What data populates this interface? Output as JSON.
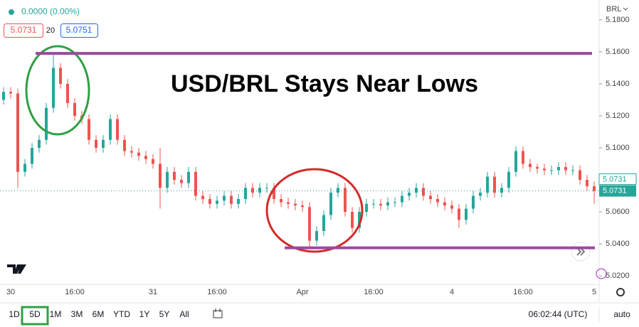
{
  "header": {
    "change": "0.0000 (0.00%)",
    "bid": 5.0731,
    "spread": 20,
    "ask": 5.0751
  },
  "chart_data": {
    "type": "candlestick",
    "title": "USD/BRL Stays Near Lows",
    "currency": "BRL",
    "categories": [
      null,
      "30",
      null,
      null,
      null,
      null,
      null,
      null,
      null,
      null,
      "16:00",
      null,
      null,
      null,
      null,
      null,
      null,
      null,
      null,
      null,
      null,
      "31",
      null,
      null,
      null,
      null,
      null,
      null,
      null,
      null,
      "16:00",
      null,
      null,
      null,
      null,
      null,
      null,
      null,
      null,
      null,
      null,
      null,
      "Apr",
      null,
      null,
      null,
      null,
      null,
      null,
      null,
      null,
      null,
      "16:00",
      null,
      null,
      null,
      null,
      null,
      null,
      null,
      null,
      null,
      null,
      "4",
      null,
      null,
      null,
      null,
      null,
      null,
      null,
      null,
      null,
      "16:00",
      null,
      null,
      null,
      null,
      null,
      null,
      null,
      null,
      null,
      "5"
    ],
    "open": [
      5.13,
      5.135,
      5.134,
      5.085,
      5.09,
      5.1,
      5.105,
      5.125,
      5.15,
      5.14,
      5.128,
      5.12,
      5.118,
      5.105,
      5.1,
      5.105,
      5.118,
      5.105,
      5.098,
      5.097,
      5.095,
      5.093,
      5.09,
      5.075,
      5.085,
      5.08,
      5.078,
      5.085,
      5.07,
      5.068,
      5.065,
      5.067,
      5.07,
      5.065,
      5.068,
      5.075,
      5.072,
      5.075,
      5.075,
      5.068,
      5.066,
      5.065,
      5.064,
      5.063,
      5.042,
      5.048,
      5.058,
      5.072,
      5.075,
      5.06,
      5.05,
      5.06,
      5.065,
      5.065,
      5.064,
      5.066,
      5.066,
      5.07,
      5.072,
      5.075,
      5.07,
      5.068,
      5.066,
      5.064,
      5.062,
      5.055,
      5.062,
      5.07,
      5.072,
      5.082,
      5.072,
      5.075,
      5.085,
      5.098,
      5.09,
      5.088,
      5.087,
      5.086,
      5.086,
      5.088,
      5.086,
      5.086,
      5.08,
      5.076
    ],
    "high": [
      5.138,
      5.138,
      5.137,
      5.093,
      5.103,
      5.108,
      5.128,
      5.158,
      5.153,
      5.143,
      5.131,
      5.123,
      5.121,
      5.108,
      5.108,
      5.121,
      5.121,
      5.108,
      5.101,
      5.1,
      5.098,
      5.096,
      5.1,
      5.088,
      5.088,
      5.083,
      5.088,
      5.088,
      5.073,
      5.071,
      5.07,
      5.073,
      5.073,
      5.071,
      5.078,
      5.078,
      5.078,
      5.078,
      5.078,
      5.071,
      5.069,
      5.068,
      5.067,
      5.066,
      5.051,
      5.061,
      5.075,
      5.078,
      5.078,
      5.063,
      5.063,
      5.068,
      5.068,
      5.068,
      5.069,
      5.069,
      5.073,
      5.075,
      5.078,
      5.078,
      5.073,
      5.071,
      5.069,
      5.067,
      5.065,
      5.065,
      5.073,
      5.075,
      5.085,
      5.085,
      5.078,
      5.088,
      5.101,
      5.101,
      5.093,
      5.09,
      5.09,
      5.089,
      5.091,
      5.091,
      5.089,
      5.089,
      5.083,
      5.079
    ],
    "low": [
      5.127,
      5.131,
      5.075,
      5.082,
      5.087,
      5.097,
      5.102,
      5.122,
      5.137,
      5.125,
      5.117,
      5.115,
      5.102,
      5.097,
      5.097,
      5.102,
      5.102,
      5.095,
      5.094,
      5.092,
      5.09,
      5.087,
      5.062,
      5.072,
      5.077,
      5.075,
      5.075,
      5.067,
      5.065,
      5.062,
      5.062,
      5.064,
      5.062,
      5.062,
      5.065,
      5.069,
      5.069,
      5.072,
      5.065,
      5.063,
      5.062,
      5.061,
      5.06,
      5.038,
      5.039,
      5.045,
      5.055,
      5.069,
      5.057,
      5.047,
      5.047,
      5.057,
      5.062,
      5.061,
      5.061,
      5.063,
      5.063,
      5.067,
      5.069,
      5.067,
      5.065,
      5.063,
      5.061,
      5.059,
      5.05,
      5.052,
      5.059,
      5.067,
      5.069,
      5.069,
      5.069,
      5.072,
      5.082,
      5.087,
      5.085,
      5.084,
      5.083,
      5.083,
      5.083,
      5.083,
      5.083,
      5.077,
      5.073,
      5.065
    ],
    "close": [
      5.135,
      5.134,
      5.085,
      5.09,
      5.1,
      5.105,
      5.125,
      5.15,
      5.14,
      5.128,
      5.12,
      5.118,
      5.105,
      5.1,
      5.105,
      5.118,
      5.105,
      5.098,
      5.097,
      5.095,
      5.093,
      5.09,
      5.075,
      5.085,
      5.08,
      5.078,
      5.085,
      5.07,
      5.068,
      5.065,
      5.067,
      5.07,
      5.065,
      5.068,
      5.075,
      5.072,
      5.075,
      5.075,
      5.068,
      5.066,
      5.065,
      5.064,
      5.063,
      5.042,
      5.048,
      5.058,
      5.072,
      5.075,
      5.06,
      5.05,
      5.06,
      5.065,
      5.065,
      5.064,
      5.066,
      5.066,
      5.07,
      5.072,
      5.075,
      5.07,
      5.068,
      5.066,
      5.064,
      5.062,
      5.055,
      5.062,
      5.07,
      5.072,
      5.082,
      5.072,
      5.075,
      5.085,
      5.098,
      5.09,
      5.088,
      5.087,
      5.086,
      5.086,
      5.088,
      5.086,
      5.086,
      5.08,
      5.076,
      5.073
    ],
    "up_color": "#26a69a",
    "down_color": "#ef5350",
    "ylim": [
      5.0147,
      5.1924
    ],
    "yticks": [
      {
        "value": 5.02,
        "label": "5.0200"
      },
      {
        "value": 5.04,
        "label": "5.0400"
      },
      {
        "value": 5.06,
        "label": "5.0600"
      },
      {
        "value": 5.08,
        "label": "5.0800"
      },
      {
        "value": 5.1,
        "label": "5.1000"
      },
      {
        "value": 5.12,
        "label": "5.1200"
      },
      {
        "value": 5.14,
        "label": "5.1400"
      },
      {
        "value": 5.16,
        "label": "5.1600"
      },
      {
        "value": 5.18,
        "label": "5.1800"
      }
    ],
    "last_price": 5.0731,
    "levels": [
      {
        "value": 5.159,
        "color": "#9a4a9e"
      },
      {
        "value": 5.0375,
        "color": "#9a4a9e"
      }
    ]
  },
  "toolbar": {
    "ranges": [
      "1D",
      "5D",
      "1M",
      "3M",
      "6M",
      "YTD",
      "1Y",
      "5Y",
      "All"
    ],
    "selected": "5D",
    "clock": "06:02:44 (UTC)",
    "scale_mode": "auto"
  }
}
